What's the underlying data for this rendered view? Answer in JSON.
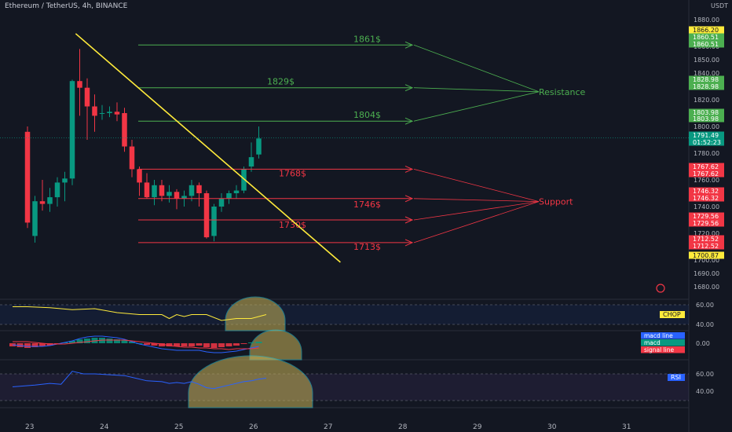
{
  "header": {
    "symbol_line": "Ethereum / TetherUS, 4h, BINANCE",
    "currency": "USDT"
  },
  "colors": {
    "background": "#131722",
    "up": "#089981",
    "down": "#f23645",
    "trendline": "#ffeb3b",
    "resistance": "#4caf50",
    "support": "#f23645",
    "chop": "#ffeb3b",
    "rsi": "#2962ff",
    "highlight": "#c9b458"
  },
  "chart_data": [
    {
      "type": "candlestick",
      "title": "",
      "ylim": [
        1672,
        1885
      ],
      "y_ticks": [
        1880,
        1870,
        1860,
        1850,
        1840,
        1830,
        1820,
        1810,
        1800,
        1790,
        1780,
        1770,
        1760,
        1750,
        1740,
        1730,
        1720,
        1710,
        1700,
        1690,
        1680
      ],
      "x_tick_labels": [
        "23",
        "24",
        "25",
        "26",
        "27",
        "28",
        "29",
        "30",
        "31"
      ],
      "candles": [
        {
          "t": 0.0,
          "o": 1796,
          "h": 1800,
          "l": 1724,
          "c": 1728
        },
        {
          "t": 0.1,
          "o": 1718,
          "h": 1748,
          "l": 1713,
          "c": 1744
        },
        {
          "t": 0.2,
          "o": 1744,
          "h": 1760,
          "l": 1737,
          "c": 1742
        },
        {
          "t": 0.3,
          "o": 1742,
          "h": 1754,
          "l": 1736,
          "c": 1747
        },
        {
          "t": 0.4,
          "o": 1747,
          "h": 1762,
          "l": 1740,
          "c": 1758
        },
        {
          "t": 0.5,
          "o": 1758,
          "h": 1766,
          "l": 1744,
          "c": 1761
        },
        {
          "t": 0.6,
          "o": 1761,
          "h": 1835,
          "l": 1756,
          "c": 1834
        },
        {
          "t": 0.7,
          "o": 1834,
          "h": 1858,
          "l": 1808,
          "c": 1829
        },
        {
          "t": 0.8,
          "o": 1829,
          "h": 1836,
          "l": 1790,
          "c": 1815
        },
        {
          "t": 0.9,
          "o": 1815,
          "h": 1824,
          "l": 1796,
          "c": 1808
        },
        {
          "t": 1.0,
          "o": 1810,
          "h": 1816,
          "l": 1805,
          "c": 1810
        },
        {
          "t": 1.1,
          "o": 1810,
          "h": 1815,
          "l": 1807,
          "c": 1811
        },
        {
          "t": 1.2,
          "o": 1811,
          "h": 1818,
          "l": 1804,
          "c": 1809
        },
        {
          "t": 1.3,
          "o": 1810,
          "h": 1814,
          "l": 1781,
          "c": 1785
        },
        {
          "t": 1.4,
          "o": 1785,
          "h": 1790,
          "l": 1762,
          "c": 1768
        },
        {
          "t": 1.5,
          "o": 1768,
          "h": 1770,
          "l": 1748,
          "c": 1758
        },
        {
          "t": 1.6,
          "o": 1758,
          "h": 1765,
          "l": 1746,
          "c": 1747
        },
        {
          "t": 1.7,
          "o": 1747,
          "h": 1760,
          "l": 1741,
          "c": 1756
        },
        {
          "t": 1.8,
          "o": 1756,
          "h": 1760,
          "l": 1744,
          "c": 1748
        },
        {
          "t": 1.9,
          "o": 1748,
          "h": 1756,
          "l": 1743,
          "c": 1751
        },
        {
          "t": 2.0,
          "o": 1751,
          "h": 1753,
          "l": 1738,
          "c": 1746
        },
        {
          "t": 2.1,
          "o": 1746,
          "h": 1752,
          "l": 1740,
          "c": 1748
        },
        {
          "t": 2.2,
          "o": 1748,
          "h": 1760,
          "l": 1744,
          "c": 1756
        },
        {
          "t": 2.3,
          "o": 1756,
          "h": 1758,
          "l": 1740,
          "c": 1750
        },
        {
          "t": 2.4,
          "o": 1750,
          "h": 1752,
          "l": 1716,
          "c": 1717
        },
        {
          "t": 2.5,
          "o": 1718,
          "h": 1742,
          "l": 1714,
          "c": 1740
        },
        {
          "t": 2.6,
          "o": 1740,
          "h": 1750,
          "l": 1736,
          "c": 1746
        },
        {
          "t": 2.7,
          "o": 1746,
          "h": 1752,
          "l": 1742,
          "c": 1750
        },
        {
          "t": 2.8,
          "o": 1750,
          "h": 1756,
          "l": 1746,
          "c": 1752
        },
        {
          "t": 2.9,
          "o": 1752,
          "h": 1770,
          "l": 1750,
          "c": 1768
        },
        {
          "t": 3.0,
          "o": 1770,
          "h": 1788,
          "l": 1766,
          "c": 1777
        },
        {
          "t": 3.1,
          "o": 1779,
          "h": 1800,
          "l": 1776,
          "c": 1791
        }
      ],
      "trendline": {
        "start": {
          "t": 0.33,
          "price": 1866
        },
        "end": {
          "t": 3.72,
          "price": 1703
        }
      },
      "resistance_levels": [
        {
          "price": 1861,
          "label": "1861$"
        },
        {
          "price": 1829,
          "label": "1829$"
        },
        {
          "price": 1804,
          "label": "1804$"
        }
      ],
      "support_levels": [
        {
          "price": 1768,
          "label": "1768$"
        },
        {
          "price": 1746,
          "label": "1746$"
        },
        {
          "price": 1730,
          "label": "1730$"
        },
        {
          "price": 1713,
          "label": "1713$"
        }
      ],
      "annotations": [
        "Resistance",
        "Support"
      ],
      "price_tags": [
        {
          "text": "1866.20",
          "style": "yellow"
        },
        {
          "text": "1860.51",
          "style": "green"
        },
        {
          "text": "1860.51",
          "style": "green"
        },
        {
          "text": "1828.98",
          "style": "green"
        },
        {
          "text": "1828.98",
          "style": "green"
        },
        {
          "text": "1803.98",
          "style": "green"
        },
        {
          "text": "1803.98",
          "style": "green"
        },
        {
          "text": "1791.49",
          "style": "teal"
        },
        {
          "text": "01:52:23",
          "style": "teal"
        },
        {
          "text": "1767.62",
          "style": "red"
        },
        {
          "text": "1767.62",
          "style": "red"
        },
        {
          "text": "1746.32",
          "style": "red"
        },
        {
          "text": "1746.32",
          "style": "red"
        },
        {
          "text": "1729.56",
          "style": "red"
        },
        {
          "text": "1729.56",
          "style": "red"
        },
        {
          "text": "1712.52",
          "style": "red"
        },
        {
          "text": "1712.52",
          "style": "red"
        },
        {
          "text": "1700.87",
          "style": "yellow"
        }
      ]
    },
    {
      "type": "line",
      "name": "CHOP",
      "y_ticks": [
        60.0,
        40.0
      ],
      "ylim": [
        33,
        67
      ],
      "x": [
        -0.2,
        0.0,
        0.3,
        0.6,
        0.9,
        1.2,
        1.5,
        1.8,
        1.9,
        2.0,
        2.1,
        2.2,
        2.4,
        2.6,
        2.8,
        3.0,
        3.2
      ],
      "values": [
        58,
        58,
        57,
        55,
        56,
        52,
        50,
        50,
        46,
        50,
        48,
        50,
        50,
        44,
        46,
        46,
        50
      ]
    },
    {
      "type": "bar",
      "name": "MACD",
      "y_ticks": [
        0.0
      ],
      "legend": [
        "macd line",
        "macd",
        "signal line"
      ],
      "x": [
        -0.2,
        -0.1,
        0.0,
        0.1,
        0.2,
        0.3,
        0.4,
        0.5,
        0.6,
        0.7,
        0.8,
        0.9,
        1.0,
        1.1,
        1.2,
        1.3,
        1.4,
        1.5,
        1.6,
        1.7,
        1.8,
        1.9,
        2.0,
        2.1,
        2.2,
        2.3,
        2.4,
        2.5,
        2.6,
        2.7,
        2.8,
        2.9,
        3.0,
        3.1
      ],
      "values": [
        -4,
        -5,
        -6,
        -5,
        -4,
        -3,
        -1,
        1,
        3,
        5,
        6,
        7,
        7,
        6,
        5,
        4,
        2,
        0,
        -2,
        -3,
        -4,
        -4,
        -4,
        -4,
        -4,
        -3,
        -5,
        -6,
        -5,
        -4,
        -3,
        -1,
        1,
        2
      ],
      "macd_line": [
        -2,
        -3,
        -4,
        -4,
        -4,
        -3,
        -1,
        1,
        3,
        6,
        8,
        9,
        9,
        8,
        7,
        5,
        2,
        -1,
        -3,
        -5,
        -7,
        -8,
        -9,
        -9,
        -9,
        -9,
        -11,
        -12,
        -12,
        -11,
        -10,
        -8,
        -6,
        -4
      ],
      "signal_line": [
        2,
        2,
        2,
        1,
        0,
        -1,
        -1,
        -1,
        0,
        1,
        2,
        3,
        4,
        4,
        4,
        4,
        3,
        2,
        1,
        0,
        -1,
        -3,
        -4,
        -5,
        -5,
        -6,
        -6,
        -7,
        -7,
        -8,
        -7,
        -7,
        -7,
        -6
      ]
    },
    {
      "type": "line",
      "name": "RSI",
      "y_ticks": [
        60.0,
        40.0
      ],
      "ylim": [
        30,
        70
      ],
      "x": [
        -0.2,
        0.1,
        0.3,
        0.45,
        0.6,
        0.75,
        0.9,
        1.1,
        1.3,
        1.45,
        1.6,
        1.8,
        1.9,
        2.0,
        2.1,
        2.2,
        2.3,
        2.4,
        2.5,
        2.6,
        2.75,
        2.9,
        3.0,
        3.1,
        3.2
      ],
      "values": [
        45,
        47,
        49,
        48,
        63,
        60,
        60,
        59,
        58,
        55,
        52,
        51,
        49,
        50,
        49,
        51,
        48,
        44,
        43,
        45,
        48,
        51,
        52,
        54,
        55
      ]
    }
  ]
}
